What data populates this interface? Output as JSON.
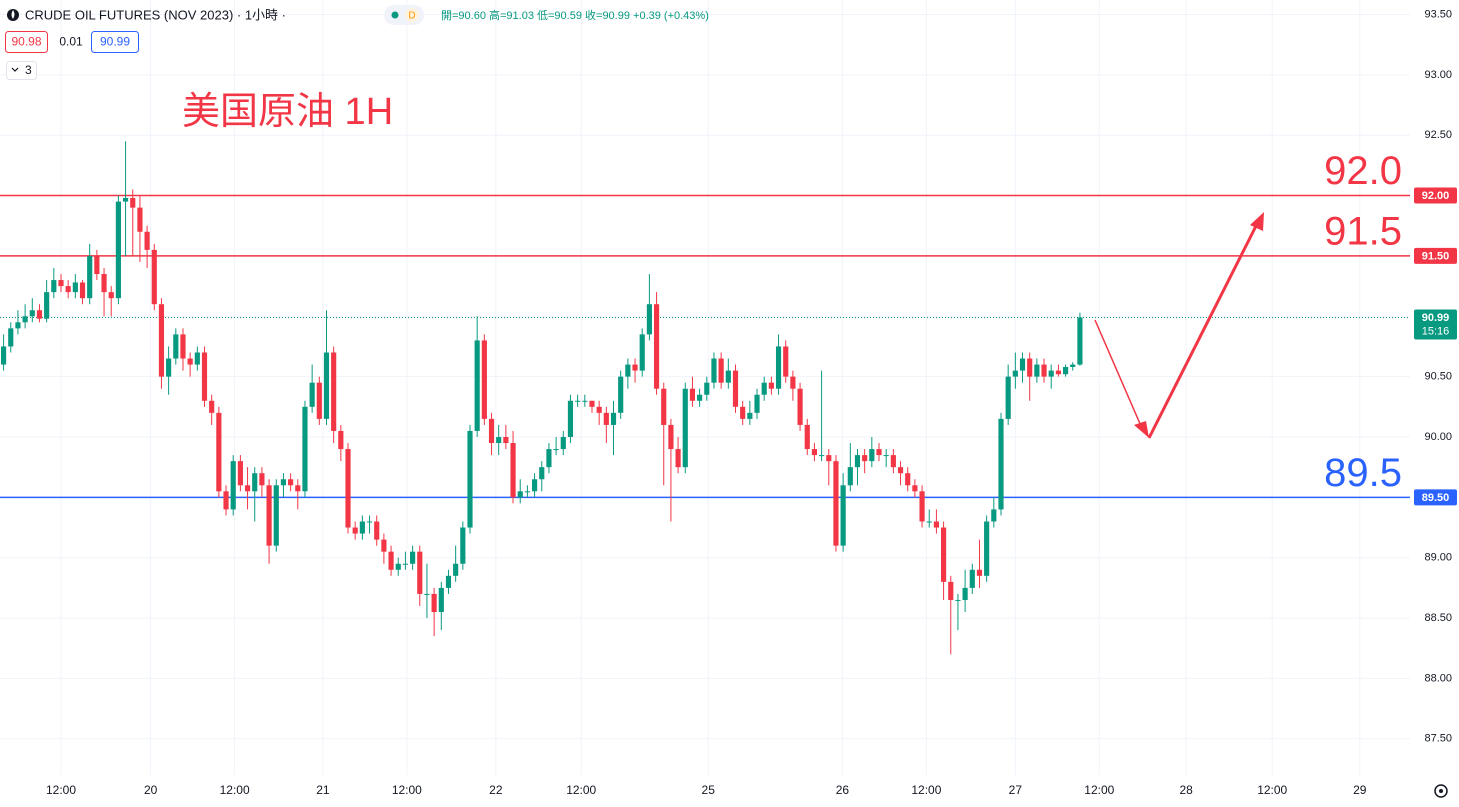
{
  "chart_data": {
    "type": "candlestick",
    "title": "CRUDE OIL FUTURES (NOV 2023) · 1小時 ·",
    "interval_badge": "D",
    "ohlc_legend": "開=90.60 高=91.03 低=90.59 收=90.99 +0.39 (+0.43%)",
    "bid": "90.98",
    "spread": "0.01",
    "ask": "90.99",
    "indicator_count": "3",
    "annotation": "美国原油 1H",
    "up_color": "#089981",
    "down_color": "#f23645",
    "grid": true,
    "ylim": [
      87.2,
      93.62
    ],
    "yticks": [
      {
        "value": 87.5,
        "label": "87.50"
      },
      {
        "value": 88,
        "label": "88.00"
      },
      {
        "value": 88.5,
        "label": "88.50"
      },
      {
        "value": 89,
        "label": "89.00"
      },
      {
        "value": 89.5,
        "label": "89.50"
      },
      {
        "value": 90,
        "label": "90.00"
      },
      {
        "value": 90.5,
        "label": "90.50"
      },
      {
        "value": 91,
        "label": "91.00"
      },
      {
        "value": 91.5,
        "label": "91.50"
      },
      {
        "value": 92,
        "label": "92.00"
      },
      {
        "value": 92.5,
        "label": "92.50"
      },
      {
        "value": 93,
        "label": "93.00"
      },
      {
        "value": 93.5,
        "label": "93.50"
      }
    ],
    "xlim": [
      -0.5,
      196
    ],
    "xticks": [
      {
        "value": 8,
        "label": "12:00"
      },
      {
        "value": 20.5,
        "label": "20"
      },
      {
        "value": 32.2,
        "label": "12:00"
      },
      {
        "value": 44.5,
        "label": "21"
      },
      {
        "value": 56.2,
        "label": "12:00"
      },
      {
        "value": 68.6,
        "label": "22"
      },
      {
        "value": 80.5,
        "label": "12:00"
      },
      {
        "value": 98.2,
        "label": "25"
      },
      {
        "value": 116.9,
        "label": "26"
      },
      {
        "value": 128.6,
        "label": "12:00"
      },
      {
        "value": 141,
        "label": "27"
      },
      {
        "value": 152.7,
        "label": "12:00"
      },
      {
        "value": 164.8,
        "label": "28"
      },
      {
        "value": 176.8,
        "label": "12:00"
      },
      {
        "value": 189,
        "label": "29"
      }
    ],
    "levels": {
      "values": [
        92,
        91.5,
        89.5
      ],
      "value_labels": [
        "92.0",
        "91.5",
        "89.5"
      ],
      "axis_labels": [
        "92.00",
        "91.50",
        "89.50"
      ],
      "colors": [
        "#f23645",
        "#f23645",
        "#2962ff"
      ]
    },
    "last_price": {
      "value": 90.99,
      "label": "90.99",
      "countdown": "15:16",
      "color": "#089981"
    },
    "candles": {
      "open": [
        90.6,
        90.75,
        90.9,
        90.95,
        91.0,
        91.05,
        90.98,
        91.2,
        91.3,
        91.25,
        91.2,
        91.28,
        91.15,
        91.5,
        91.35,
        91.2,
        91.15,
        91.95,
        91.98,
        91.9,
        91.7,
        91.55,
        91.1,
        90.5,
        90.65,
        90.85,
        90.65,
        90.6,
        90.7,
        90.3,
        90.2,
        89.55,
        89.4,
        89.8,
        89.6,
        89.55,
        89.7,
        89.6,
        89.1,
        89.6,
        89.65,
        89.6,
        89.55,
        90.25,
        90.45,
        90.15,
        90.7,
        90.05,
        89.9,
        89.25,
        89.2,
        89.3,
        89.3,
        89.15,
        89.05,
        88.9,
        88.95,
        88.95,
        89.05,
        88.7,
        88.7,
        88.55,
        88.75,
        88.85,
        88.95,
        89.25,
        90.05,
        90.8,
        90.15,
        89.95,
        90.0,
        89.95,
        89.5,
        89.55,
        89.55,
        89.65,
        89.75,
        89.9,
        89.9,
        90.0,
        90.3,
        90.3,
        90.3,
        90.25,
        90.2,
        90.1,
        90.2,
        90.5,
        90.6,
        90.55,
        90.85,
        91.1,
        90.4,
        90.1,
        89.9,
        89.75,
        90.4,
        90.3,
        90.35,
        90.45,
        90.65,
        90.45,
        90.55,
        90.25,
        90.15,
        90.2,
        90.35,
        90.45,
        90.4,
        90.75,
        90.5,
        90.4,
        90.1,
        89.9,
        89.85,
        89.85,
        89.8,
        89.1,
        89.6,
        89.75,
        89.85,
        89.8,
        89.9,
        89.85,
        89.85,
        89.75,
        89.7,
        89.6,
        89.55,
        89.3,
        89.3,
        89.25,
        88.8,
        88.65,
        88.65,
        88.75,
        88.9,
        88.85,
        89.3,
        89.4,
        90.15,
        90.5,
        90.55,
        90.65,
        90.5,
        90.6,
        90.5,
        90.55,
        90.52,
        90.58,
        90.6
      ],
      "high": [
        90.85,
        90.95,
        91.05,
        91.1,
        91.15,
        91.1,
        91.3,
        91.4,
        91.35,
        91.3,
        91.35,
        91.3,
        91.6,
        91.55,
        91.4,
        91.25,
        92.0,
        92.45,
        92.05,
        92.0,
        91.75,
        91.6,
        91.15,
        90.75,
        90.9,
        90.9,
        90.7,
        90.75,
        90.75,
        90.35,
        90.25,
        89.6,
        89.85,
        89.85,
        89.75,
        89.75,
        89.75,
        89.65,
        89.65,
        89.7,
        89.7,
        89.65,
        90.3,
        90.6,
        90.5,
        91.05,
        90.75,
        90.1,
        89.95,
        89.3,
        89.35,
        89.35,
        89.35,
        89.2,
        89.1,
        89.0,
        89.05,
        89.1,
        89.1,
        88.95,
        88.75,
        88.8,
        88.9,
        89.1,
        89.3,
        90.1,
        91.0,
        90.85,
        90.2,
        90.1,
        90.1,
        90.05,
        89.65,
        89.6,
        89.7,
        89.8,
        89.95,
        90.0,
        90.05,
        90.35,
        90.35,
        90.35,
        90.3,
        90.3,
        90.25,
        90.3,
        90.55,
        90.65,
        90.65,
        90.9,
        91.35,
        91.2,
        90.45,
        90.15,
        90.0,
        90.45,
        90.5,
        90.4,
        90.5,
        90.7,
        90.7,
        90.65,
        90.6,
        90.3,
        90.3,
        90.4,
        90.5,
        90.5,
        90.85,
        90.8,
        90.55,
        90.45,
        90.15,
        89.95,
        90.55,
        89.9,
        89.85,
        89.7,
        89.95,
        89.9,
        89.9,
        90.0,
        89.95,
        89.9,
        89.9,
        89.8,
        89.75,
        89.65,
        89.6,
        89.4,
        89.4,
        89.3,
        88.85,
        88.7,
        88.9,
        88.95,
        89.15,
        89.35,
        89.5,
        90.2,
        90.6,
        90.7,
        90.7,
        90.7,
        90.65,
        90.65,
        90.6,
        90.6,
        90.6,
        90.62,
        91.03
      ],
      "low": [
        90.55,
        90.7,
        90.85,
        90.9,
        90.95,
        90.95,
        90.95,
        91.15,
        91.2,
        91.15,
        91.15,
        91.1,
        91.1,
        91.3,
        91.0,
        91.0,
        91.1,
        91.5,
        91.5,
        91.45,
        91.4,
        91.05,
        90.4,
        90.35,
        90.6,
        90.55,
        90.5,
        90.55,
        90.25,
        90.1,
        89.5,
        89.35,
        89.35,
        89.55,
        89.4,
        89.3,
        89.5,
        88.95,
        89.05,
        89.5,
        89.55,
        89.4,
        89.5,
        90.2,
        90.1,
        90.1,
        89.95,
        89.8,
        89.2,
        89.15,
        89.15,
        89.2,
        89.1,
        88.95,
        88.85,
        88.85,
        88.9,
        88.9,
        88.6,
        88.5,
        88.35,
        88.4,
        88.7,
        88.8,
        88.9,
        89.2,
        90.0,
        90.1,
        89.85,
        89.85,
        89.9,
        89.45,
        89.45,
        89.5,
        89.5,
        89.55,
        89.7,
        89.85,
        89.85,
        89.95,
        90.25,
        90.25,
        90.2,
        90.1,
        89.95,
        89.85,
        90.15,
        90.4,
        90.45,
        90.5,
        90.8,
        90.35,
        89.6,
        89.3,
        89.7,
        89.7,
        90.25,
        90.25,
        90.3,
        90.4,
        90.4,
        90.4,
        90.2,
        90.1,
        90.1,
        90.15,
        90.3,
        90.35,
        90.35,
        90.45,
        90.3,
        90.05,
        89.85,
        89.8,
        89.8,
        89.6,
        89.05,
        89.05,
        89.55,
        89.6,
        89.7,
        89.75,
        89.8,
        89.75,
        89.7,
        89.6,
        89.55,
        89.5,
        89.25,
        89.25,
        89.2,
        88.65,
        88.2,
        88.4,
        88.55,
        88.7,
        88.75,
        88.8,
        89.25,
        89.35,
        90.1,
        90.4,
        90.45,
        90.3,
        90.45,
        90.45,
        90.4,
        90.5,
        90.5,
        90.55,
        90.59
      ],
      "close": [
        90.75,
        90.9,
        90.95,
        91.0,
        91.05,
        90.98,
        91.2,
        91.3,
        91.25,
        91.2,
        91.28,
        91.15,
        91.5,
        91.35,
        91.2,
        91.15,
        91.95,
        91.98,
        91.9,
        91.7,
        91.55,
        91.1,
        90.5,
        90.65,
        90.85,
        90.65,
        90.6,
        90.7,
        90.3,
        90.2,
        89.55,
        89.4,
        89.8,
        89.6,
        89.55,
        89.7,
        89.6,
        89.1,
        89.6,
        89.65,
        89.6,
        89.55,
        90.25,
        90.45,
        90.15,
        90.7,
        90.05,
        89.9,
        89.25,
        89.2,
        89.3,
        89.3,
        89.15,
        89.05,
        88.9,
        88.95,
        88.95,
        89.05,
        88.7,
        88.7,
        88.55,
        88.75,
        88.85,
        88.95,
        89.25,
        90.05,
        90.8,
        90.15,
        89.95,
        90.0,
        89.95,
        89.5,
        89.55,
        89.55,
        89.65,
        89.75,
        89.9,
        89.9,
        90.0,
        90.3,
        90.3,
        90.3,
        90.25,
        90.2,
        90.1,
        90.2,
        90.5,
        90.6,
        90.55,
        90.85,
        91.1,
        90.4,
        90.1,
        89.9,
        89.75,
        90.4,
        90.3,
        90.35,
        90.45,
        90.65,
        90.45,
        90.55,
        90.25,
        90.15,
        90.2,
        90.35,
        90.45,
        90.4,
        90.75,
        90.5,
        90.4,
        90.1,
        89.9,
        89.85,
        89.85,
        89.8,
        89.1,
        89.6,
        89.75,
        89.85,
        89.8,
        89.9,
        89.85,
        89.85,
        89.75,
        89.7,
        89.6,
        89.55,
        89.3,
        89.3,
        89.25,
        88.8,
        88.65,
        88.65,
        88.75,
        88.9,
        88.85,
        89.3,
        89.4,
        90.15,
        90.5,
        90.55,
        90.65,
        90.5,
        90.6,
        90.5,
        90.55,
        90.52,
        90.58,
        90.6,
        90.99
      ]
    }
  }
}
